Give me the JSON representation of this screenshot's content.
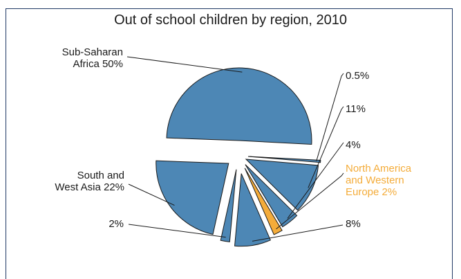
{
  "chart_data": {
    "type": "pie",
    "title": "Out of school children by region, 2010",
    "slices": [
      {
        "label": "0.5%",
        "value": 0.5,
        "color": "#4d87b5"
      },
      {
        "label": "11%",
        "value": 11,
        "color": "#4d87b5"
      },
      {
        "label": "4%",
        "value": 4,
        "color": "#4d87b5"
      },
      {
        "label": "North America and Western Europe 2%",
        "label_lines": [
          "North America",
          "and Western",
          "Europe 2%"
        ],
        "value": 2,
        "color": "#f4ac3a",
        "highlight": true
      },
      {
        "label": "8%",
        "value": 8,
        "color": "#4d87b5"
      },
      {
        "label": "2%",
        "value": 2,
        "color": "#4d87b5"
      },
      {
        "label": "South and West Asia 22%",
        "label_lines": [
          "South and",
          "West Asia 22%"
        ],
        "value": 22,
        "color": "#4d87b5"
      },
      {
        "label": "Sub-Saharan Africa 50%",
        "label_lines": [
          "Sub-Saharan",
          "Africa 50%"
        ],
        "value": 50,
        "color": "#4d87b5"
      }
    ]
  }
}
